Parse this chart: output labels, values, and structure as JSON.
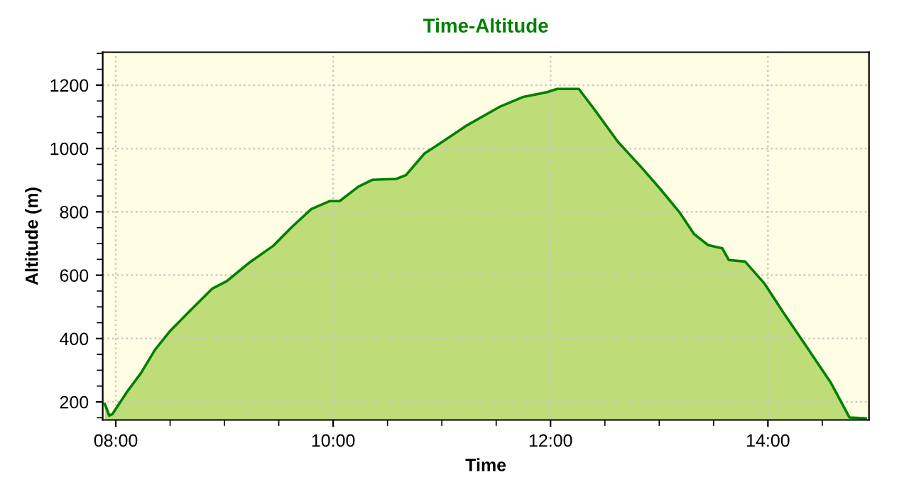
{
  "chart_data": {
    "type": "area",
    "title": "Time-Altitude",
    "xlabel": "Time",
    "ylabel": "Altitude (m)",
    "xlim": [
      7.88,
      14.93
    ],
    "xticks": [
      {
        "value": 8,
        "label": "08:00"
      },
      {
        "value": 10,
        "label": "10:00"
      },
      {
        "value": 12,
        "label": "12:00"
      },
      {
        "value": 14,
        "label": "14:00"
      }
    ],
    "ylim": [
      143,
      1304
    ],
    "yticks": [
      200,
      400,
      600,
      800,
      1000,
      1200
    ],
    "grid": true,
    "legend": false,
    "series": [
      {
        "color": "#008000",
        "x": [
          7.9,
          7.94,
          7.97,
          8.1,
          8.23,
          8.36,
          8.5,
          8.67,
          8.89,
          9.02,
          9.23,
          9.45,
          9.62,
          9.8,
          9.97,
          10.06,
          10.23,
          10.36,
          10.58,
          10.67,
          10.84,
          10.97,
          11.1,
          11.23,
          11.54,
          11.75,
          11.97,
          12.06,
          12.26,
          12.4,
          12.62,
          12.84,
          13.01,
          13.19,
          13.32,
          13.45,
          13.58,
          13.64,
          13.79,
          13.97,
          14.14,
          14.36,
          14.58,
          14.75,
          14.9
        ],
        "values": [
          193,
          157,
          162,
          230,
          290,
          364,
          424,
          483,
          558,
          581,
          640,
          693,
          752,
          809,
          834,
          834,
          879,
          901,
          904,
          916,
          984,
          1013,
          1043,
          1073,
          1133,
          1163,
          1178,
          1188,
          1188,
          1125,
          1021,
          939,
          872,
          797,
          730,
          695,
          685,
          648,
          643,
          573,
          483,
          372,
          260,
          151,
          148
        ]
      }
    ]
  }
}
